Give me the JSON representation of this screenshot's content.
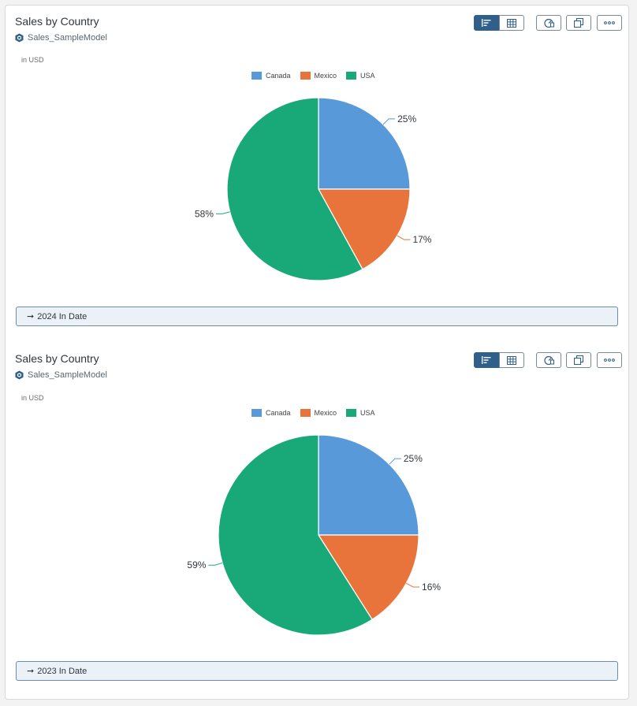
{
  "colors": {
    "canada": "#5899da",
    "mexico": "#e8743b",
    "usa": "#19a979"
  },
  "cards": [
    {
      "title": "Sales by Country",
      "model": "Sales_SampleModel",
      "unit": "in USD",
      "legend": [
        "Canada",
        "Mexico",
        "USA"
      ],
      "filter_arrow": "➞",
      "filter": "2024 In Date",
      "labels": [
        "25%",
        "17%",
        "58%"
      ]
    },
    {
      "title": "Sales by Country",
      "model": "Sales_SampleModel",
      "unit": "in USD",
      "legend": [
        "Canada",
        "Mexico",
        "USA"
      ],
      "filter_arrow": "➞",
      "filter": "2023 In Date",
      "labels": [
        "25%",
        "16%",
        "59%"
      ]
    }
  ],
  "chart_data": [
    {
      "type": "pie",
      "title": "Sales by Country",
      "unit": "in USD",
      "categories": [
        "Canada",
        "Mexico",
        "USA"
      ],
      "values": [
        25,
        17,
        58
      ],
      "legend": "top"
    },
    {
      "type": "pie",
      "title": "Sales by Country",
      "unit": "in USD",
      "categories": [
        "Canada",
        "Mexico",
        "USA"
      ],
      "values": [
        25,
        16,
        59
      ],
      "legend": "top"
    }
  ]
}
